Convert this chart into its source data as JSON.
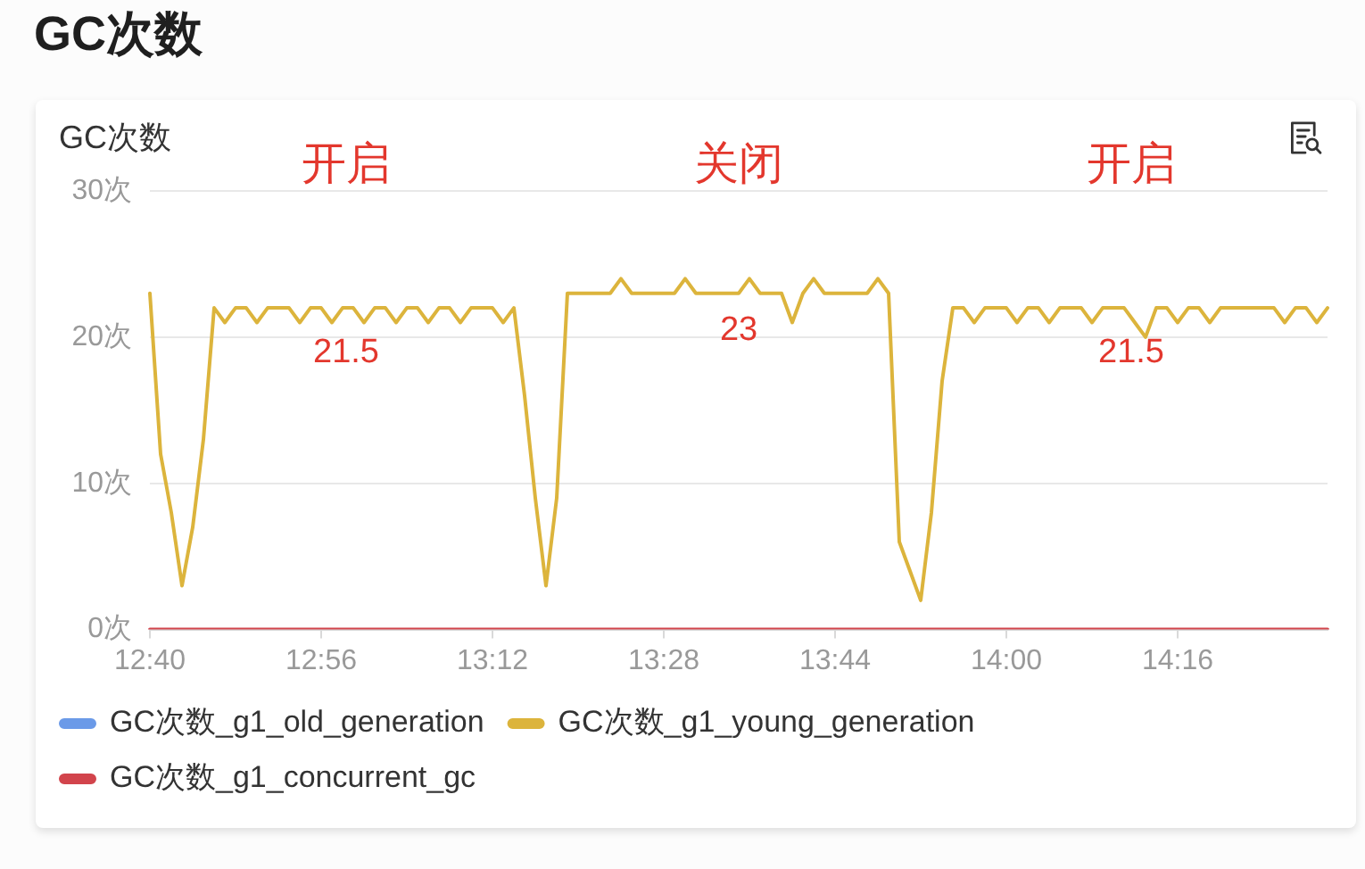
{
  "chart_data": {
    "type": "line",
    "title": "GC次数",
    "subtitle": "GC次数",
    "categories": [
      "12:40",
      null,
      null,
      null,
      null,
      null,
      null,
      null,
      null,
      null,
      null,
      null,
      null,
      null,
      null,
      null,
      "12:56",
      null,
      null,
      null,
      null,
      null,
      null,
      null,
      null,
      null,
      null,
      null,
      null,
      null,
      null,
      null,
      "13:12",
      null,
      null,
      null,
      null,
      null,
      null,
      null,
      null,
      null,
      null,
      null,
      null,
      null,
      null,
      null,
      "13:28",
      null,
      null,
      null,
      null,
      null,
      null,
      null,
      null,
      null,
      null,
      null,
      null,
      null,
      null,
      null,
      "13:44",
      null,
      null,
      null,
      null,
      null,
      null,
      null,
      null,
      null,
      null,
      null,
      null,
      null,
      null,
      null,
      "14:00",
      null,
      null,
      null,
      null,
      null,
      null,
      null,
      null,
      null,
      null,
      null,
      null,
      null,
      null,
      null,
      "14:16",
      null,
      null,
      null,
      null,
      null,
      null,
      null,
      null,
      null,
      null,
      null,
      null,
      null,
      null
    ],
    "series": [
      {
        "name": "GC次数_g1_old_generation",
        "color": "#6b9ae8",
        "values": [
          null,
          null,
          null,
          null,
          null,
          null,
          null,
          null,
          null,
          null,
          null,
          null,
          null,
          null,
          null,
          null,
          null,
          null,
          null,
          null,
          null,
          null,
          null,
          null,
          null,
          null,
          null,
          null,
          null,
          null,
          null,
          null,
          null,
          null,
          null,
          null,
          null,
          null,
          null,
          null,
          null,
          null,
          null,
          null,
          null,
          null,
          null,
          null,
          null,
          null,
          null,
          null,
          null,
          null,
          null,
          null,
          null,
          null,
          null,
          null,
          null,
          null,
          null,
          null,
          null,
          null,
          null,
          null,
          null,
          null,
          null,
          null,
          null,
          null,
          null,
          null,
          null,
          null,
          null,
          null,
          null,
          null,
          null,
          null,
          null,
          null,
          null,
          null,
          null,
          null,
          null,
          null,
          null,
          null,
          null,
          null,
          null,
          null,
          null,
          null,
          null,
          null,
          null,
          null,
          null,
          null,
          null,
          null,
          null,
          null,
          null
        ]
      },
      {
        "name": "GC次数_g1_young_generation",
        "color": "#dcb43c",
        "values": [
          23,
          12,
          8,
          3,
          7,
          13,
          22,
          21,
          22,
          22,
          21,
          22,
          22,
          22,
          21,
          22,
          22,
          21,
          22,
          22,
          21,
          22,
          22,
          21,
          22,
          22,
          21,
          22,
          22,
          21,
          22,
          22,
          22,
          21,
          22,
          16,
          9,
          3,
          9,
          23,
          23,
          23,
          23,
          23,
          24,
          23,
          23,
          23,
          23,
          23,
          24,
          23,
          23,
          23,
          23,
          23,
          24,
          23,
          23,
          23,
          21,
          23,
          24,
          23,
          23,
          23,
          23,
          23,
          24,
          23,
          6,
          4,
          2,
          8,
          17,
          22,
          22,
          21,
          22,
          22,
          22,
          21,
          22,
          22,
          21,
          22,
          22,
          22,
          21,
          22,
          22,
          22,
          21,
          20,
          22,
          22,
          21,
          22,
          22,
          21,
          22,
          22,
          22,
          22,
          22,
          22,
          21,
          22,
          22,
          21,
          22
        ]
      },
      {
        "name": "GC次数_g1_concurrent_gc",
        "color": "#d2444c",
        "values": [
          0,
          0,
          0,
          0,
          0,
          0,
          0,
          0,
          0,
          0,
          0,
          0,
          0,
          0,
          0,
          0,
          0,
          0,
          0,
          0,
          0,
          0,
          0,
          0,
          0,
          0,
          0,
          0,
          0,
          0,
          0,
          0,
          0,
          0,
          0,
          0,
          0,
          0,
          0,
          0,
          0,
          0,
          0,
          0,
          0,
          0,
          0,
          0,
          0,
          0,
          0,
          0,
          0,
          0,
          0,
          0,
          0,
          0,
          0,
          0,
          0,
          0,
          0,
          0,
          0,
          0,
          0,
          0,
          0,
          0,
          0,
          0,
          0,
          0,
          0,
          0,
          0,
          0,
          0,
          0,
          0,
          0,
          0,
          0,
          0,
          0,
          0,
          0,
          0,
          0,
          0,
          0,
          0,
          0,
          0,
          0,
          0,
          0,
          0,
          0,
          0,
          0,
          0,
          0,
          0,
          0,
          0,
          0,
          0,
          0,
          0
        ]
      }
    ],
    "ylim": [
      0,
      30
    ],
    "yticks": [
      {
        "value": 0,
        "label": "0次"
      },
      {
        "value": 10,
        "label": "10次"
      },
      {
        "value": 20,
        "label": "20次"
      },
      {
        "value": 30,
        "label": "30次"
      }
    ],
    "grid": "y",
    "legend": "bottom",
    "marker": "none",
    "line_style": "solid",
    "annotations": [
      "开启",
      "关闭",
      "开启",
      {
        "text": "21.5",
        "y": 21.5
      },
      {
        "text": "23",
        "y": 23
      },
      {
        "text": "21.5",
        "y": 21.5
      }
    ]
  }
}
